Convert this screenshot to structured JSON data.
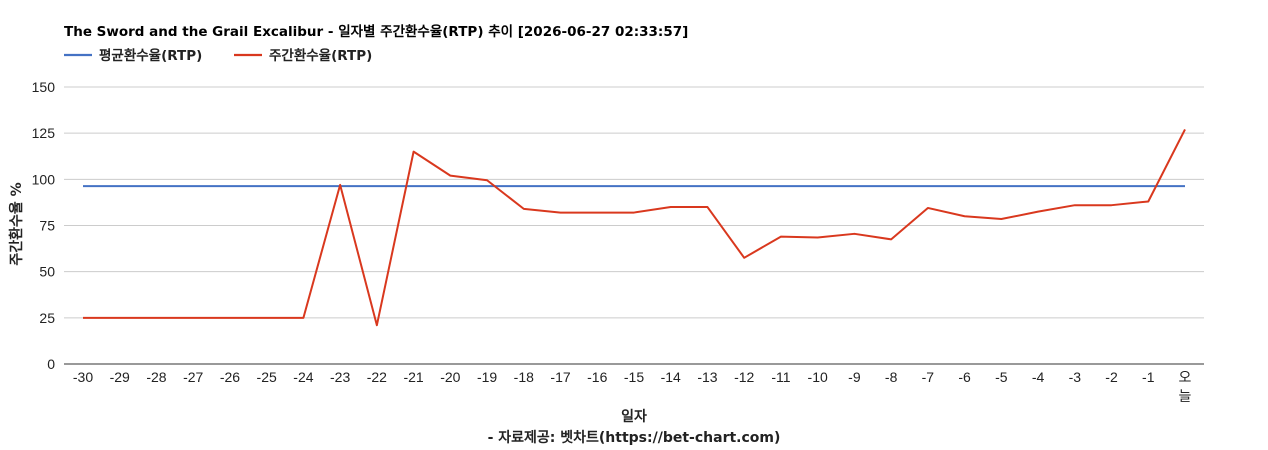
{
  "chart_data": {
    "type": "line",
    "title": "The Sword and the Grail Excalibur - 일자별 주간환수율(RTP) 추이 [2026-06-27 02:33:57]",
    "xlabel": "일자",
    "ylabel": "주간환수율 %",
    "source": "- 자료제공: 벳차트(https://bet-chart.com)",
    "ylim": [
      0,
      150
    ],
    "yticks": [
      0,
      25,
      50,
      75,
      100,
      125,
      150
    ],
    "grid": true,
    "legend_position": "top-left",
    "categories": [
      "-30",
      "-29",
      "-28",
      "-27",
      "-26",
      "-25",
      "-24",
      "-23",
      "-22",
      "-21",
      "-20",
      "-19",
      "-18",
      "-17",
      "-16",
      "-15",
      "-14",
      "-13",
      "-12",
      "-11",
      "-10",
      "-9",
      "-8",
      "-7",
      "-6",
      "-5",
      "-4",
      "-3",
      "-2",
      "-1",
      "오늘"
    ],
    "series": [
      {
        "name": "평균환수율(RTP)",
        "color": "#4472c4",
        "values": [
          96.3,
          96.3,
          96.3,
          96.3,
          96.3,
          96.3,
          96.3,
          96.3,
          96.3,
          96.3,
          96.3,
          96.3,
          96.3,
          96.3,
          96.3,
          96.3,
          96.3,
          96.3,
          96.3,
          96.3,
          96.3,
          96.3,
          96.3,
          96.3,
          96.3,
          96.3,
          96.3,
          96.3,
          96.3,
          96.3,
          96.3
        ]
      },
      {
        "name": "주간환수율(RTP)",
        "color": "#d9381e",
        "values": [
          25,
          25,
          25,
          25,
          25,
          25,
          25,
          97,
          21,
          115,
          102,
          99.5,
          84,
          82,
          82,
          82,
          85,
          85,
          57.5,
          69,
          68.5,
          70.5,
          67.5,
          84.5,
          80,
          78.5,
          82.5,
          86,
          86,
          88,
          127
        ]
      }
    ]
  }
}
